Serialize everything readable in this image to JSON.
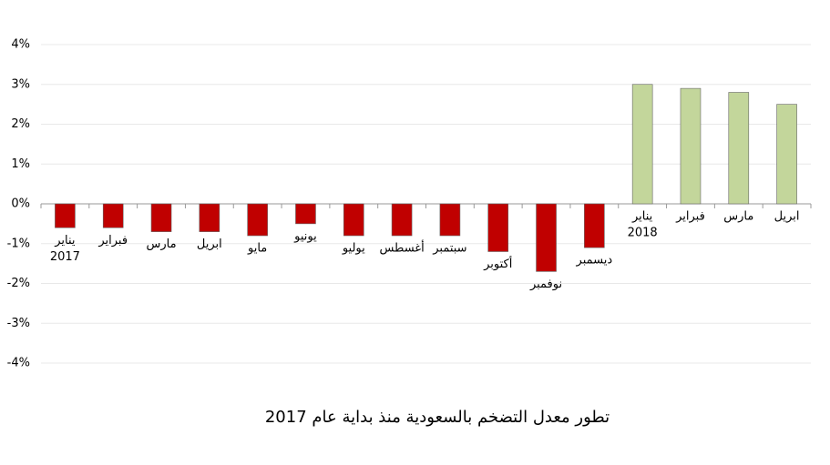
{
  "chart_data": {
    "type": "bar",
    "title": "تطور معدل التضخم بالسعودية منذ بداية عام 2017",
    "categories": [
      [
        "يناير",
        "2017"
      ],
      [
        "فبراير"
      ],
      [
        "مارس"
      ],
      [
        "ابريل"
      ],
      [
        "مايو"
      ],
      [
        "يونيو"
      ],
      [
        "يوليو"
      ],
      [
        "أغسطس"
      ],
      [
        "سبتمبر"
      ],
      [
        "أكتوبر"
      ],
      [
        "نوفمبر"
      ],
      [
        "ديسمبر"
      ],
      [
        "يناير",
        "2018"
      ],
      [
        "فبراير"
      ],
      [
        "مارس"
      ],
      [
        "ابريل"
      ]
    ],
    "values": [
      -0.6,
      -0.6,
      -0.7,
      -0.7,
      -0.8,
      -0.5,
      -0.8,
      -0.8,
      -0.8,
      -1.2,
      -1.7,
      -1.1,
      3.0,
      2.9,
      2.8,
      2.5
    ],
    "colors": [
      "#c00000",
      "#c00000",
      "#c00000",
      "#c00000",
      "#c00000",
      "#c00000",
      "#c00000",
      "#c00000",
      "#c00000",
      "#c00000",
      "#c00000",
      "#c00000",
      "#c3d69b",
      "#c3d69b",
      "#c3d69b",
      "#c3d69b"
    ],
    "ylim": [
      -4,
      4
    ],
    "yticks": [
      {
        "value": -4,
        "label": "-4%"
      },
      {
        "value": -3,
        "label": "-3%"
      },
      {
        "value": -2,
        "label": "-2%"
      },
      {
        "value": -1,
        "label": "-1%"
      },
      {
        "value": 0,
        "label": "0%"
      },
      {
        "value": 1,
        "label": "1%"
      },
      {
        "value": 2,
        "label": "2%"
      },
      {
        "value": 3,
        "label": "3%"
      },
      {
        "value": 4,
        "label": "4%"
      }
    ],
    "grid": true
  }
}
